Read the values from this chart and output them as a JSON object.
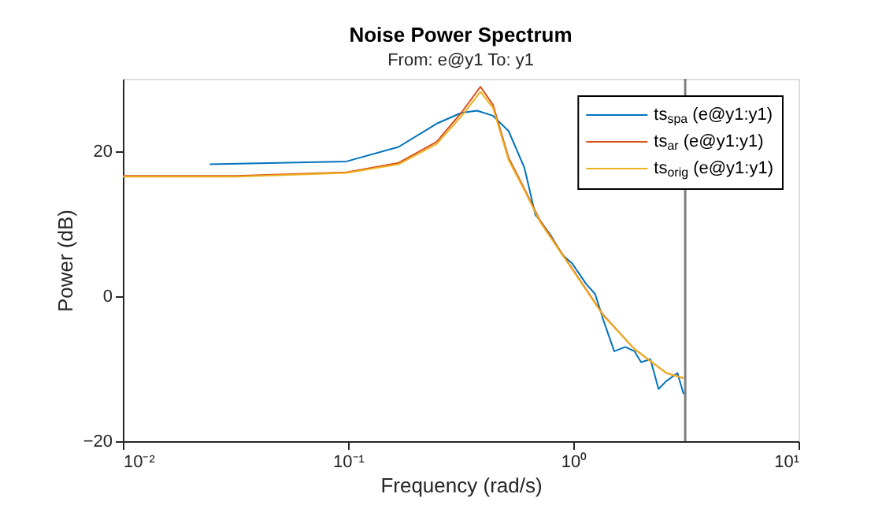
{
  "chart_data": {
    "type": "line",
    "title": "Noise Power Spectrum",
    "subtitle": "From: e@y1  To: y1",
    "xlabel": "Frequency (rad/s)",
    "ylabel": "Power (dB)",
    "log": "x",
    "xlim": [
      0.01,
      10
    ],
    "xticks": [
      {
        "value": 0.01,
        "label": "10⁻²"
      },
      {
        "value": 0.1,
        "label": "10⁻¹"
      },
      {
        "value": 1,
        "label": "10⁰"
      },
      {
        "value": 10,
        "label": "10¹"
      }
    ],
    "ylim": [
      -20,
      30
    ],
    "yticks": [
      -20,
      0,
      20
    ],
    "grid": false,
    "legend": "top right",
    "ref_lines": [
      {
        "axis": "x",
        "value": 3.14,
        "color": "#808080"
      }
    ],
    "series": [
      {
        "name": "ts$_{spa}$ (e@y1:y1)",
        "color": "#0072bd",
        "x": [
          0.0243,
          0.0984,
          0.1675,
          0.247,
          0.318,
          0.374,
          0.44,
          0.516,
          0.607,
          0.679,
          0.713,
          0.798,
          0.893,
          0.984,
          1.14,
          1.25,
          1.36,
          1.52,
          1.7,
          1.87,
          2.0,
          2.2,
          2.39,
          2.59,
          2.9,
          3.09
        ],
        "values": [
          18.2,
          18.6,
          20.6,
          23.8,
          25.3,
          25.6,
          24.9,
          22.8,
          17.7,
          11.2,
          10.4,
          8.3,
          5.7,
          4.6,
          1.7,
          0.3,
          -3.3,
          -7.6,
          -7.0,
          -7.6,
          -9.1,
          -8.7,
          -12.8,
          -11.7,
          -10.6,
          -13.5
        ]
      },
      {
        "name": "ts$_{ar}$ (e@y1:y1)",
        "color": "#d95319",
        "x": [
          0.01,
          0.0318,
          0.0984,
          0.1675,
          0.247,
          0.318,
          0.387,
          0.44,
          0.516,
          0.607,
          0.713,
          0.984,
          1.36,
          1.87,
          2.59,
          3.09
        ],
        "values": [
          16.6,
          16.6,
          17.1,
          18.4,
          21.3,
          25.3,
          28.9,
          26.4,
          19.1,
          14.8,
          10.4,
          3.9,
          -2.6,
          -7.3,
          -10.6,
          -11.3
        ]
      },
      {
        "name": "ts$_{orig}$ (e@y1:y1)",
        "color": "#edb120",
        "x": [
          0.01,
          0.0318,
          0.0984,
          0.1675,
          0.247,
          0.318,
          0.387,
          0.44,
          0.516,
          0.607,
          0.713,
          0.984,
          1.36,
          1.87,
          2.59,
          3.09
        ],
        "values": [
          16.5,
          16.5,
          17.0,
          18.2,
          21.0,
          24.8,
          28.2,
          26.0,
          18.8,
          14.6,
          10.2,
          3.8,
          -2.7,
          -7.3,
          -10.6,
          -11.3
        ]
      }
    ]
  }
}
